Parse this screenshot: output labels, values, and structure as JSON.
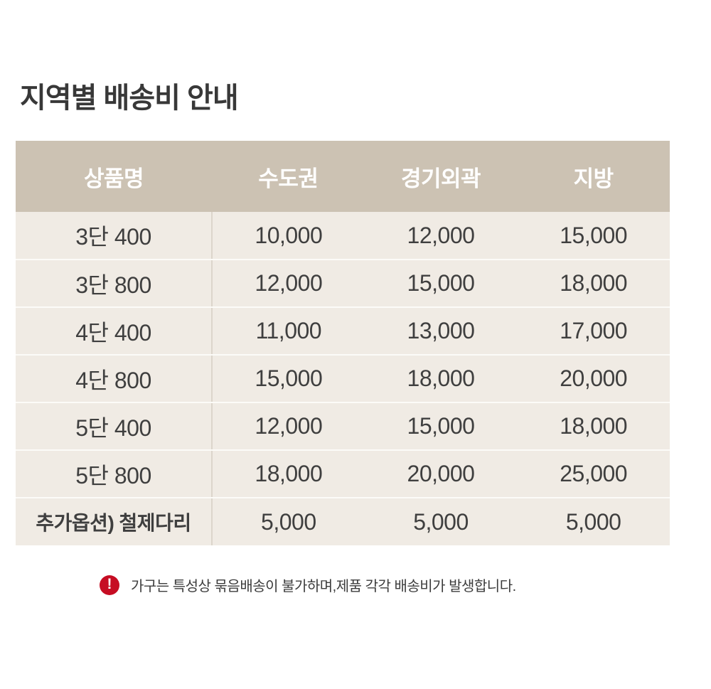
{
  "page": {
    "title": "지역별 배송비 안내"
  },
  "table": {
    "columns": [
      "상품명",
      "수도권",
      "경기외곽",
      "지방"
    ],
    "rows": [
      {
        "name": "3단 400",
        "fees": [
          "10,000",
          "12,000",
          "15,000"
        ],
        "emphasis": false
      },
      {
        "name": "3단 800",
        "fees": [
          "12,000",
          "15,000",
          "18,000"
        ],
        "emphasis": false
      },
      {
        "name": "4단 400",
        "fees": [
          "11,000",
          "13,000",
          "17,000"
        ],
        "emphasis": false
      },
      {
        "name": "4단 800",
        "fees": [
          "15,000",
          "18,000",
          "20,000"
        ],
        "emphasis": false
      },
      {
        "name": "5단 400",
        "fees": [
          "12,000",
          "15,000",
          "18,000"
        ],
        "emphasis": false
      },
      {
        "name": "5단 800",
        "fees": [
          "18,000",
          "20,000",
          "25,000"
        ],
        "emphasis": false
      },
      {
        "name": "추가옵션) 철제다리",
        "fees": [
          "5,000",
          "5,000",
          "5,000"
        ],
        "emphasis": true
      }
    ]
  },
  "note": {
    "icon": "exclamation-circle-icon",
    "icon_glyph": "!",
    "text": "가구는 특성상 묶음배송이 불가하며,제품 각각 배송비가 발생합니다."
  },
  "colors": {
    "header_bg": "#ccc2b3",
    "header_text": "#ffffff",
    "body_bg": "#f0ebe4",
    "divider": "#fcfbf8",
    "vertical_divider": "#dcd5cb",
    "text_dark": "#3f3f3f",
    "title_text": "#383838",
    "note_red": "#c60d23"
  }
}
